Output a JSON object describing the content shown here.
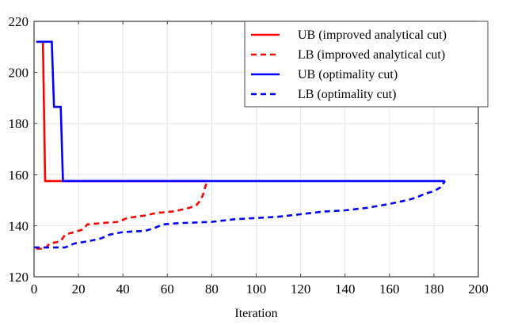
{
  "chart_data": {
    "type": "line",
    "title": "",
    "xlabel": "Iteration",
    "ylabel": "",
    "xlim": [
      0,
      200
    ],
    "ylim": [
      120,
      220
    ],
    "xticks": [
      0,
      20,
      40,
      60,
      80,
      100,
      120,
      140,
      160,
      180,
      200
    ],
    "yticks": [
      120,
      140,
      160,
      180,
      200,
      220
    ],
    "grid": true,
    "legend_position": "top-right",
    "series": [
      {
        "name": "UB (improved analytical cut)",
        "color": "#ff0000",
        "style": "solid",
        "x": [
          1,
          4,
          5,
          78
        ],
        "y": [
          212,
          212,
          157.5,
          157.5
        ]
      },
      {
        "name": "LB (improved analytical cut)",
        "color": "#ff0000",
        "style": "dashed",
        "x": [
          1,
          5,
          7,
          10,
          12,
          14,
          16,
          20,
          22,
          24,
          30,
          38,
          42,
          50,
          55,
          62,
          65,
          70,
          73,
          75,
          76,
          77,
          78
        ],
        "y": [
          131,
          131,
          133,
          133.5,
          134,
          136.5,
          137,
          138,
          138.5,
          140.5,
          141,
          141.5,
          143,
          144,
          145,
          145.5,
          146,
          147,
          148,
          150,
          152,
          155,
          157.5
        ]
      },
      {
        "name": "UB (optimality cut)",
        "color": "#0000ff",
        "style": "solid",
        "x": [
          1,
          8,
          9,
          12,
          13,
          185
        ],
        "y": [
          212,
          212,
          186.5,
          186.5,
          157.5,
          157.5
        ]
      },
      {
        "name": "LB (optimality cut)",
        "color": "#0000ff",
        "style": "dashed",
        "x": [
          0,
          10,
          14,
          18,
          25,
          30,
          34,
          40,
          50,
          54,
          58,
          65,
          80,
          90,
          100,
          110,
          120,
          130,
          140,
          150,
          160,
          168,
          172,
          176,
          180,
          183,
          185
        ],
        "y": [
          131.5,
          131.5,
          131.5,
          133,
          134,
          135,
          136.5,
          137.5,
          138,
          139,
          140.5,
          141,
          141.5,
          142.5,
          143,
          143.5,
          144.5,
          145.5,
          146,
          147,
          148.5,
          150,
          151,
          152.5,
          153.5,
          155,
          157.5
        ]
      }
    ]
  }
}
